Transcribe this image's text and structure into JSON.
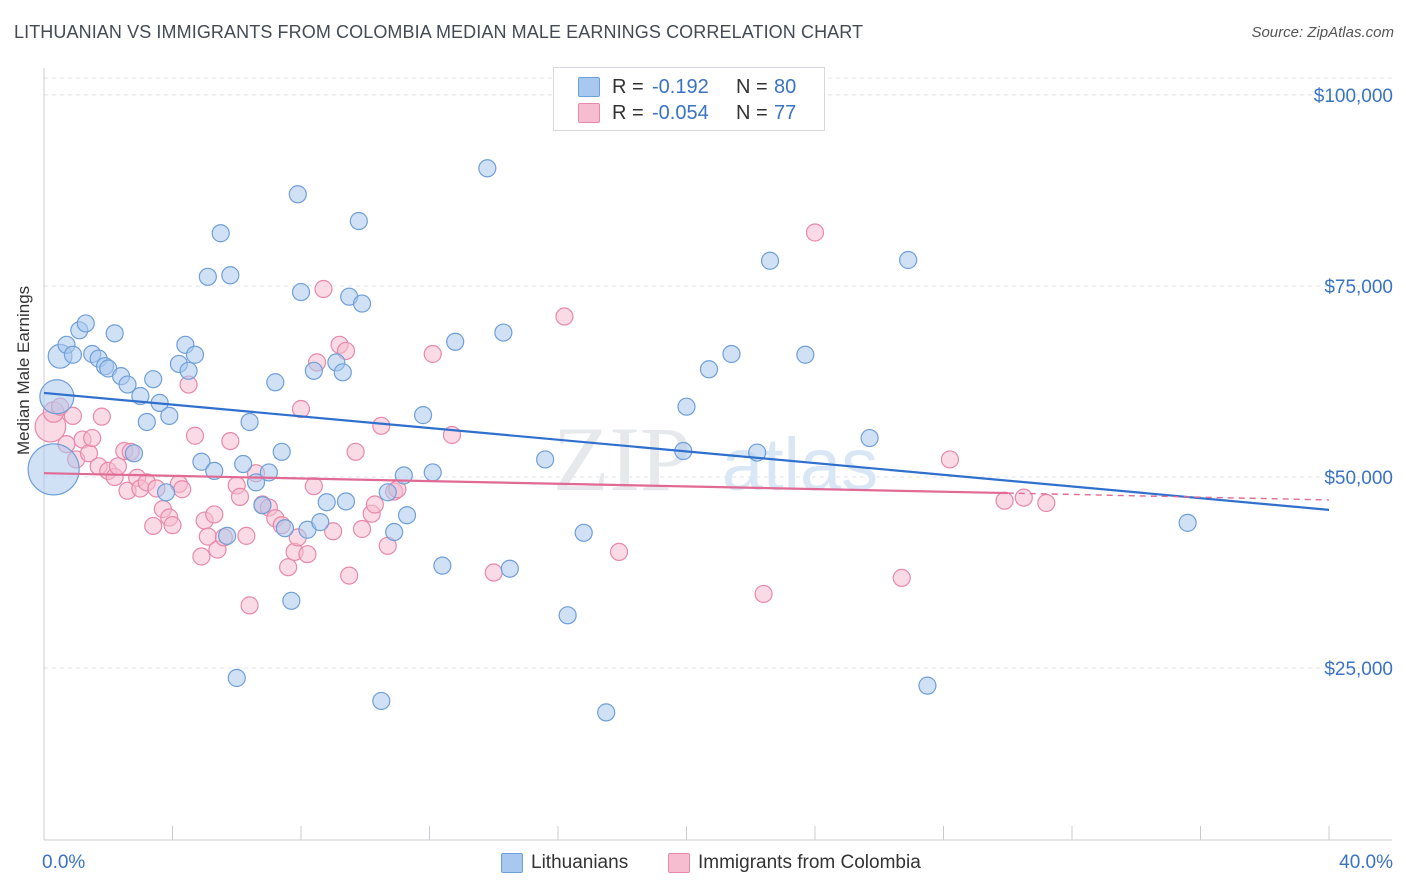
{
  "title": "LITHUANIAN VS IMMIGRANTS FROM COLOMBIA MEDIAN MALE EARNINGS CORRELATION CHART",
  "source": "Source: ZipAtlas.com",
  "watermark": {
    "zip": "ZIP",
    "atlas": "atlas"
  },
  "colors": {
    "blue_fill": "#a9c8ef",
    "blue_stroke": "#6f9fd8",
    "blue_line": "#2f6fce",
    "pink_fill": "#f6bcd0",
    "pink_stroke": "#e889a9",
    "pink_line": "#e06a93",
    "tick_text": "#3b73c4",
    "grid": "#dfe3e8"
  },
  "legend": {
    "rows": [
      {
        "r_label": "R =",
        "r_value": "-0.192",
        "n_label": "N =",
        "n_value": "80"
      },
      {
        "r_label": "R =",
        "r_value": "-0.054",
        "n_label": "N =",
        "n_value": "77"
      }
    ]
  },
  "bottom_legend": {
    "series1": "Lithuanians",
    "series2": "Immigrants from Colombia"
  },
  "chart_data": {
    "type": "scatter",
    "title": "LITHUANIAN VS IMMIGRANTS FROM COLOMBIA MEDIAN MALE EARNINGS CORRELATION CHART",
    "xlabel": "",
    "ylabel": "Median Male Earnings",
    "xlim": [
      0,
      40
    ],
    "ylim": [
      2500,
      103000
    ],
    "x_tick_labels": [
      "0.0%",
      "40.0%"
    ],
    "y_ticks": [
      25000,
      50000,
      75000,
      100000
    ],
    "y_tick_labels": [
      "$25,000",
      "$50,000",
      "$75,000",
      "$100,000"
    ],
    "grid": true,
    "legend_position": "top-center",
    "series": [
      {
        "name": "Lithuanians",
        "color": "#a9c8ef",
        "trend": {
          "x": [
            0,
            40
          ],
          "y": [
            61000,
            45700
          ]
        },
        "points": [
          [
            0.3,
            51000,
            3
          ],
          [
            0.4,
            60500,
            2
          ],
          [
            0.5,
            65800,
            1.4
          ],
          [
            0.7,
            67300,
            1
          ],
          [
            0.9,
            66000,
            1
          ],
          [
            1.1,
            69200,
            1
          ],
          [
            1.3,
            70100,
            1
          ],
          [
            1.5,
            66100,
            1
          ],
          [
            1.7,
            65500,
            1
          ],
          [
            1.9,
            64500,
            1
          ],
          [
            2.0,
            64200,
            1
          ],
          [
            2.2,
            68800,
            1
          ],
          [
            2.4,
            63200,
            1
          ],
          [
            2.6,
            62100,
            1
          ],
          [
            2.8,
            53100,
            1
          ],
          [
            3.0,
            60600,
            1
          ],
          [
            3.2,
            57200,
            1
          ],
          [
            3.4,
            62800,
            1
          ],
          [
            3.6,
            59700,
            1
          ],
          [
            3.8,
            48000,
            1
          ],
          [
            3.9,
            58000,
            1
          ],
          [
            4.2,
            64800,
            1
          ],
          [
            4.4,
            67300,
            1
          ],
          [
            4.5,
            63900,
            1
          ],
          [
            4.7,
            66000,
            1
          ],
          [
            4.9,
            52000,
            1
          ],
          [
            5.1,
            76200,
            1
          ],
          [
            5.3,
            50800,
            1
          ],
          [
            5.5,
            81900,
            1
          ],
          [
            5.7,
            42300,
            1
          ],
          [
            5.8,
            76400,
            1
          ],
          [
            6.0,
            23700,
            1
          ],
          [
            6.2,
            51700,
            1
          ],
          [
            6.4,
            57200,
            1
          ],
          [
            6.6,
            49300,
            1
          ],
          [
            6.8,
            46300,
            1
          ],
          [
            7.0,
            50600,
            1
          ],
          [
            7.2,
            62400,
            1
          ],
          [
            7.4,
            53300,
            1
          ],
          [
            7.5,
            43300,
            1
          ],
          [
            7.7,
            33800,
            1
          ],
          [
            7.9,
            87000,
            1
          ],
          [
            8.0,
            74200,
            1
          ],
          [
            8.2,
            43100,
            1
          ],
          [
            8.4,
            63900,
            1
          ],
          [
            8.6,
            44100,
            1
          ],
          [
            8.8,
            46700,
            1
          ],
          [
            9.1,
            65000,
            1
          ],
          [
            9.3,
            63700,
            1
          ],
          [
            9.4,
            46800,
            1
          ],
          [
            9.5,
            73600,
            1
          ],
          [
            9.8,
            83500,
            1
          ],
          [
            9.9,
            72700,
            1
          ],
          [
            10.5,
            20700,
            1
          ],
          [
            10.7,
            48000,
            1
          ],
          [
            10.9,
            42800,
            1
          ],
          [
            11.2,
            50200,
            1
          ],
          [
            11.3,
            45000,
            1
          ],
          [
            11.8,
            58100,
            1
          ],
          [
            12.1,
            50600,
            1
          ],
          [
            12.4,
            38400,
            1
          ],
          [
            12.8,
            67700,
            1
          ],
          [
            13.8,
            90400,
            1
          ],
          [
            14.3,
            68900,
            1
          ],
          [
            14.5,
            38000,
            1
          ],
          [
            15.6,
            52300,
            1
          ],
          [
            16.3,
            31900,
            1
          ],
          [
            16.8,
            42700,
            1
          ],
          [
            17.5,
            19200,
            1
          ],
          [
            19.9,
            53400,
            1
          ],
          [
            20.0,
            59200,
            1
          ],
          [
            20.7,
            64100,
            1
          ],
          [
            21.4,
            66100,
            1
          ],
          [
            22.2,
            53200,
            1
          ],
          [
            22.6,
            78300,
            1
          ],
          [
            23.7,
            66000,
            1
          ],
          [
            25.7,
            55100,
            1
          ],
          [
            26.9,
            78400,
            1
          ],
          [
            27.5,
            22700,
            1
          ],
          [
            35.6,
            44000,
            1
          ]
        ]
      },
      {
        "name": "Immigrants from Colombia",
        "color": "#f6bcd0",
        "trend": {
          "x": [
            0,
            30
          ],
          "y": [
            50500,
            47900
          ]
        },
        "trend_dashed": {
          "x": [
            30,
            40
          ],
          "y": [
            47900,
            47000
          ]
        },
        "points": [
          [
            0.2,
            56600,
            1.8
          ],
          [
            0.3,
            58500,
            1.2
          ],
          [
            0.5,
            59200,
            1
          ],
          [
            0.7,
            54300,
            1
          ],
          [
            0.9,
            58000,
            1
          ],
          [
            1.0,
            52300,
            1
          ],
          [
            1.2,
            54900,
            1
          ],
          [
            1.4,
            53100,
            1
          ],
          [
            1.5,
            55100,
            1
          ],
          [
            1.7,
            51400,
            1
          ],
          [
            1.8,
            57900,
            1
          ],
          [
            2.0,
            50800,
            1
          ],
          [
            2.2,
            50000,
            1
          ],
          [
            2.3,
            51400,
            1
          ],
          [
            2.5,
            53400,
            1
          ],
          [
            2.6,
            48200,
            1
          ],
          [
            2.7,
            53300,
            1
          ],
          [
            2.9,
            49900,
            1
          ],
          [
            3.0,
            48500,
            1
          ],
          [
            3.2,
            49300,
            1
          ],
          [
            3.4,
            43600,
            1
          ],
          [
            3.5,
            48500,
            1
          ],
          [
            3.7,
            45800,
            1
          ],
          [
            3.9,
            44700,
            1
          ],
          [
            4.0,
            43700,
            1
          ],
          [
            4.2,
            49100,
            1
          ],
          [
            4.3,
            48400,
            1
          ],
          [
            4.5,
            62100,
            1
          ],
          [
            4.7,
            55400,
            1
          ],
          [
            4.9,
            39600,
            1
          ],
          [
            5.0,
            44300,
            1
          ],
          [
            5.1,
            42200,
            1
          ],
          [
            5.3,
            45100,
            1
          ],
          [
            5.4,
            40500,
            1
          ],
          [
            5.6,
            42100,
            1
          ],
          [
            5.8,
            54700,
            1
          ],
          [
            6.0,
            48900,
            1
          ],
          [
            6.1,
            47400,
            1
          ],
          [
            6.3,
            42300,
            1
          ],
          [
            6.4,
            33200,
            1
          ],
          [
            6.6,
            50500,
            1
          ],
          [
            6.8,
            46400,
            1
          ],
          [
            7.0,
            46000,
            1
          ],
          [
            7.2,
            44600,
            1
          ],
          [
            7.4,
            43700,
            1
          ],
          [
            7.6,
            38200,
            1
          ],
          [
            7.8,
            40200,
            1
          ],
          [
            7.9,
            42100,
            1
          ],
          [
            8.0,
            58900,
            1
          ],
          [
            8.2,
            39900,
            1
          ],
          [
            8.4,
            48800,
            1
          ],
          [
            8.5,
            65000,
            1
          ],
          [
            8.7,
            74600,
            1
          ],
          [
            9.0,
            42900,
            1
          ],
          [
            9.2,
            67300,
            1
          ],
          [
            9.4,
            66500,
            1
          ],
          [
            9.5,
            37100,
            1
          ],
          [
            9.7,
            53300,
            1
          ],
          [
            9.9,
            43200,
            1
          ],
          [
            10.2,
            45200,
            1
          ],
          [
            10.3,
            46400,
            1
          ],
          [
            10.5,
            56700,
            1
          ],
          [
            10.7,
            41000,
            1
          ],
          [
            10.9,
            48100,
            1
          ],
          [
            11.0,
            48400,
            1
          ],
          [
            12.1,
            66100,
            1
          ],
          [
            12.7,
            55500,
            1
          ],
          [
            14.0,
            37500,
            1
          ],
          [
            16.2,
            71000,
            1
          ],
          [
            17.9,
            40200,
            1
          ],
          [
            22.4,
            34700,
            1
          ],
          [
            24.0,
            82000,
            1
          ],
          [
            26.7,
            36800,
            1
          ],
          [
            28.2,
            52300,
            1
          ],
          [
            29.9,
            46900,
            1
          ],
          [
            30.5,
            47300,
            1
          ],
          [
            31.2,
            46600,
            1
          ]
        ]
      }
    ]
  }
}
